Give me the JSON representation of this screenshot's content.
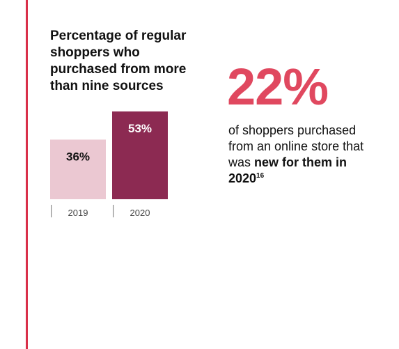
{
  "chart_data": {
    "type": "bar",
    "title": "Percentage of regular shoppers who purchased from more than nine sources",
    "categories": [
      "2019",
      "2020"
    ],
    "values": [
      36,
      53
    ],
    "data_labels": [
      "36%",
      "53%"
    ],
    "ylim": [
      0,
      53
    ],
    "colors": [
      "#ebc8d2",
      "#8c2a52"
    ]
  },
  "stat": {
    "value": "22%",
    "text_plain": "of shoppers purchased from an online store that was ",
    "text_bold": "new for them in 2020",
    "footnote": "16"
  },
  "colors": {
    "accent_line": "#d9304a",
    "stat_value": "#e0485f"
  }
}
